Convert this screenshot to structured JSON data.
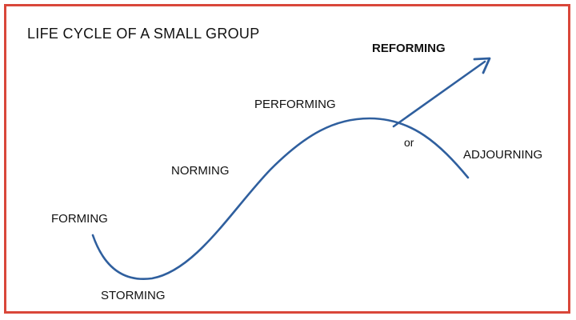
{
  "title": "LIFE CYCLE OF A SMALL GROUP",
  "stages": {
    "forming": "FORMING",
    "storming": "STORMING",
    "norming": "NORMING",
    "performing": "PERFORMING",
    "reforming": "REFORMING",
    "connector": "or",
    "adjourning": "ADJOURNING"
  },
  "colors": {
    "curve": "#2f5f9e",
    "frame": "#d9473a",
    "text": "#111111"
  }
}
